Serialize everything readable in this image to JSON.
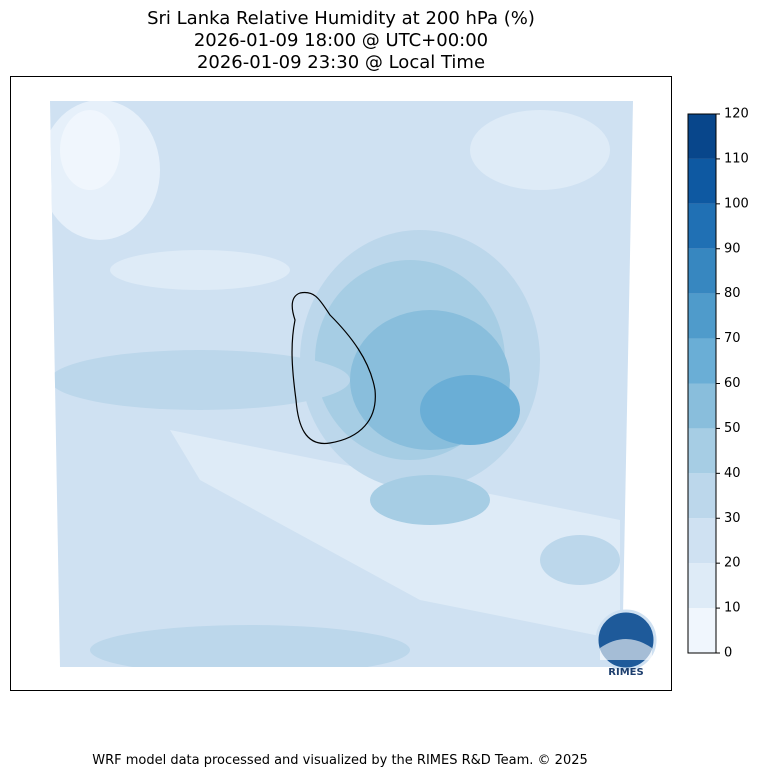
{
  "title": [
    "Sri Lanka Relative Humidity at 200 hPa (%)",
    "2026-01-09 18:00 @ UTC+00:00",
    "2026-01-09 23:30 @ Local Time"
  ],
  "colorbar": {
    "ticks": [
      0,
      10,
      20,
      30,
      40,
      50,
      60,
      70,
      80,
      90,
      100,
      110,
      120
    ],
    "colors": [
      "#f0f6fd",
      "#deebf7",
      "#cfe1f2",
      "#bcd7eb",
      "#a6cde4",
      "#89bedc",
      "#6aaed6",
      "#4f9bcb",
      "#3787c0",
      "#2070b4",
      "#0e59a2",
      "#08468b"
    ]
  },
  "logo": "RIMES",
  "footer": "WRF model data processed and visualized by the RIMES R&D Team. © 2025"
}
